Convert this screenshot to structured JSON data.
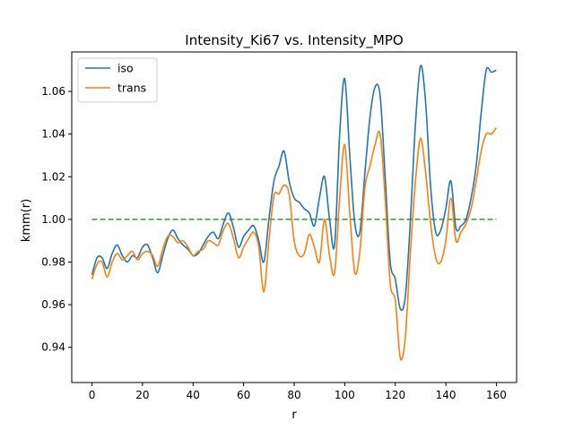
{
  "chart_data": {
    "type": "line",
    "title": "Intensity_Ki67 vs. Intensity_MPO",
    "xlabel": "r",
    "ylabel": "kmm(r)",
    "xlim": [
      -8,
      168
    ],
    "ylim": [
      0.9235,
      1.0785
    ],
    "xticks": [
      0,
      20,
      40,
      60,
      80,
      100,
      120,
      140,
      160
    ],
    "yticks": [
      0.94,
      0.96,
      0.98,
      1.0,
      1.02,
      1.04,
      1.06
    ],
    "ytick_labels": [
      "0.94",
      "0.96",
      "0.98",
      "1.00",
      "1.02",
      "1.04",
      "1.06"
    ],
    "grid": false,
    "legend": "top-left",
    "reference_line": {
      "y": 1.0,
      "color": "#2ca02c",
      "style": "dashed"
    },
    "series": [
      {
        "name": "iso",
        "color": "#1f77b4",
        "x": [
          0,
          2,
          4,
          6,
          8,
          10,
          12,
          14,
          16,
          18,
          20,
          22,
          24,
          26,
          28,
          30,
          32,
          34,
          36,
          38,
          40,
          42,
          44,
          46,
          48,
          50,
          52,
          54,
          56,
          58,
          60,
          62,
          64,
          66,
          68,
          70,
          72,
          74,
          76,
          78,
          80,
          82,
          84,
          86,
          88,
          90,
          92,
          94,
          96,
          98,
          100,
          102,
          104,
          106,
          108,
          110,
          112,
          114,
          116,
          118,
          120,
          122,
          124,
          126,
          128,
          130,
          132,
          134,
          136,
          138,
          140,
          142,
          144,
          146,
          148,
          150,
          152,
          154,
          156,
          158,
          160
        ],
        "values": [
          0.974,
          0.982,
          0.982,
          0.977,
          0.984,
          0.988,
          0.983,
          0.98,
          0.983,
          0.982,
          0.987,
          0.988,
          0.982,
          0.975,
          0.983,
          0.991,
          0.995,
          0.991,
          0.988,
          0.986,
          0.983,
          0.984,
          0.988,
          0.992,
          0.994,
          0.991,
          0.998,
          1.003,
          0.996,
          0.987,
          0.992,
          0.995,
          0.997,
          0.99,
          0.98,
          1.0,
          1.018,
          1.025,
          1.032,
          1.018,
          1.01,
          1.008,
          1.005,
          1.003,
          0.997,
          1.01,
          1.02,
          1.0,
          0.988,
          1.04,
          1.066,
          1.03,
          0.998,
          0.994,
          1.022,
          1.048,
          1.062,
          1.058,
          1.02,
          0.98,
          0.972,
          0.958,
          0.964,
          1.0,
          1.045,
          1.072,
          1.055,
          1.015,
          0.994,
          0.995,
          1.005,
          1.018,
          0.996,
          0.997,
          1.0,
          1.01,
          1.025,
          1.05,
          1.07,
          1.069,
          1.07
        ]
      },
      {
        "name": "trans",
        "color": "#ff7f0e",
        "x": [
          0,
          2,
          4,
          6,
          8,
          10,
          12,
          14,
          16,
          18,
          20,
          22,
          24,
          26,
          28,
          30,
          32,
          34,
          36,
          38,
          40,
          42,
          44,
          46,
          48,
          50,
          52,
          54,
          56,
          58,
          60,
          62,
          64,
          66,
          68,
          70,
          72,
          74,
          76,
          78,
          80,
          82,
          84,
          86,
          88,
          90,
          92,
          94,
          96,
          98,
          100,
          102,
          104,
          106,
          108,
          110,
          112,
          114,
          116,
          118,
          120,
          122,
          124,
          126,
          128,
          130,
          132,
          134,
          136,
          138,
          140,
          142,
          144,
          146,
          148,
          150,
          152,
          154,
          156,
          158,
          160
        ],
        "values": [
          0.972,
          0.979,
          0.98,
          0.973,
          0.98,
          0.984,
          0.981,
          0.983,
          0.985,
          0.981,
          0.984,
          0.985,
          0.983,
          0.978,
          0.986,
          0.992,
          0.992,
          0.989,
          0.99,
          0.987,
          0.983,
          0.985,
          0.986,
          0.99,
          0.989,
          0.988,
          0.995,
          0.998,
          0.991,
          0.982,
          0.987,
          0.991,
          0.994,
          0.987,
          0.966,
          0.99,
          1.011,
          1.012,
          1.016,
          1.012,
          0.99,
          0.983,
          0.984,
          0.993,
          0.987,
          0.98,
          1.0,
          0.983,
          0.975,
          1.01,
          1.035,
          1.003,
          0.975,
          0.985,
          1.015,
          1.025,
          1.035,
          1.04,
          1.01,
          0.97,
          0.962,
          0.935,
          0.945,
          0.985,
          1.018,
          1.038,
          1.022,
          0.998,
          0.982,
          0.98,
          0.99,
          1.01,
          0.99,
          0.994,
          0.998,
          1.005,
          1.018,
          1.032,
          1.04,
          1.04,
          1.043
        ]
      }
    ]
  }
}
